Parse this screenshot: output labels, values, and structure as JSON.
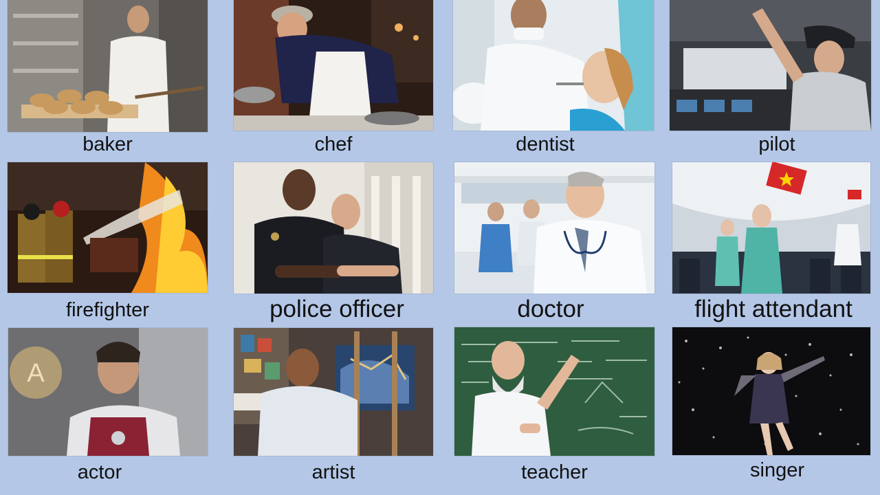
{
  "slide": {
    "background": "#b4c7e7",
    "cards": [
      {
        "label": "baker",
        "image": "baker-photo"
      },
      {
        "label": "chef",
        "image": "chef-photo"
      },
      {
        "label": "dentist",
        "image": "dentist-photo"
      },
      {
        "label": "pilot",
        "image": "pilot-photo"
      },
      {
        "label": "firefighter",
        "image": "firefighter-photo"
      },
      {
        "label": "police officer",
        "image": "police-officer-photo"
      },
      {
        "label": "doctor",
        "image": "doctor-photo"
      },
      {
        "label": "flight attendant",
        "image": "flight-attendant-photo"
      },
      {
        "label": "actor",
        "image": "actor-photo"
      },
      {
        "label": "artist",
        "image": "artist-photo"
      },
      {
        "label": "teacher",
        "image": "teacher-photo"
      },
      {
        "label": "singer",
        "image": "singer-photo"
      }
    ]
  }
}
